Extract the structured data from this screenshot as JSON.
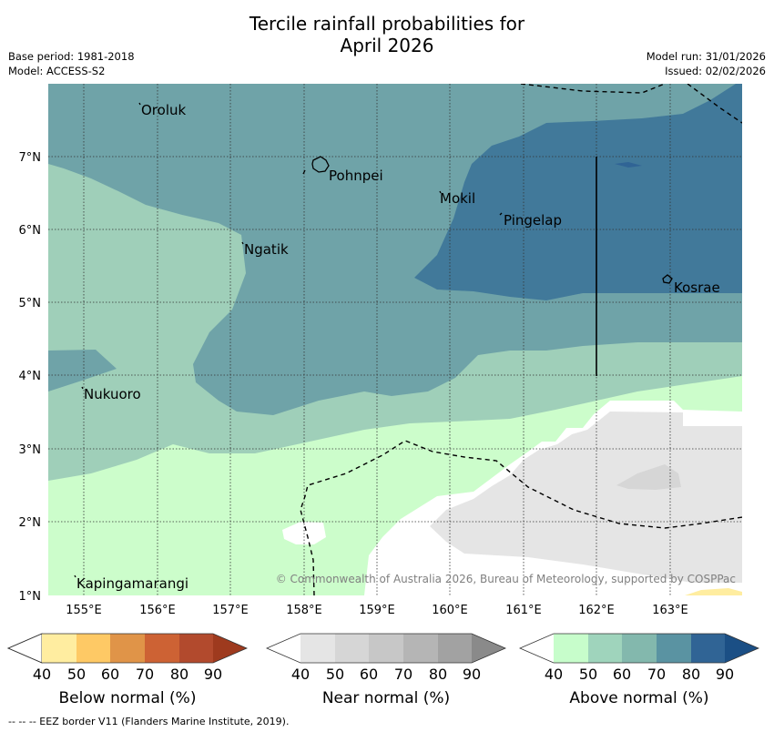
{
  "title": {
    "line1": "Tercile rainfall probabilities for",
    "line2": "April 2026"
  },
  "meta": {
    "base_period": "Base period: 1981-2018",
    "model": "Model: ACCESS-S2",
    "model_run": "Model run: 31/01/2026",
    "issued": "Issued: 02/02/2026"
  },
  "map": {
    "lon_labels": [
      "155°E",
      "156°E",
      "157°E",
      "158°E",
      "159°E",
      "160°E",
      "161°E",
      "162°E",
      "163°E"
    ],
    "lat_labels": [
      "7°N",
      "6°N",
      "5°N",
      "4°N",
      "3°N",
      "2°N",
      "1°N"
    ],
    "places": [
      "Oroluk",
      "Pohnpei",
      "Mokil",
      "Pingelap",
      "Ngatik",
      "Kosrae",
      "Nukuoro",
      "Kapingamarangi"
    ],
    "copyright": "© Commonwealth of Australia 2026, Bureau of Meteorology, supported by COSPPac"
  },
  "colorbars": [
    {
      "label": "Below normal (%)",
      "ticks": [
        "40",
        "50",
        "60",
        "70",
        "80",
        "90"
      ],
      "colors": [
        "#ffffff",
        "#ffeda0",
        "#fec965",
        "#e09448",
        "#cd6234",
        "#b24a2d",
        "#9e3a1e"
      ]
    },
    {
      "label": "Near normal (%)",
      "ticks": [
        "40",
        "50",
        "60",
        "70",
        "80",
        "90"
      ],
      "colors": [
        "#ffffff",
        "#e5e5e5",
        "#d6d6d6",
        "#c7c7c7",
        "#b5b5b5",
        "#a2a2a2",
        "#8a8a8a"
      ]
    },
    {
      "label": "Above normal (%)",
      "ticks": [
        "40",
        "50",
        "60",
        "70",
        "80",
        "90"
      ],
      "colors": [
        "#ffffff",
        "#c7fdcb",
        "#9fd4bc",
        "#83b8ad",
        "#5a93a2",
        "#306495",
        "#1b4f85"
      ]
    }
  ],
  "footnote": "-- -- -- EEZ border V11 (Flanders Marine Institute, 2019)."
}
